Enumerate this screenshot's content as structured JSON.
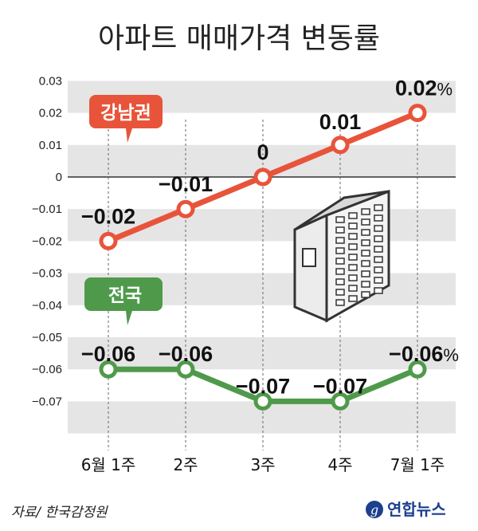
{
  "title": "아파트 매매가격 변동률",
  "source": "자료/ 한국감정원",
  "brand": "연합뉴스",
  "chart_data": {
    "type": "line",
    "categories": [
      "6월 1주",
      "2주",
      "3주",
      "4주",
      "7월 1주"
    ],
    "ylim": [
      -0.075,
      0.03
    ],
    "yticks": [
      "0.03",
      "0.02",
      "0.01",
      "0",
      "-0.01",
      "-0.02",
      "-0.03",
      "-0.04",
      "-0.05",
      "-0.06",
      "-0.07"
    ],
    "ytick_values": [
      0.03,
      0.02,
      0.01,
      0,
      -0.01,
      -0.02,
      -0.03,
      -0.04,
      -0.05,
      -0.06,
      -0.07
    ],
    "grid": "horizontal bands",
    "series": [
      {
        "name": "강남권",
        "color": "#e8543a",
        "values": [
          -0.02,
          -0.01,
          0,
          0.01,
          0.02
        ],
        "labels": [
          "-0.02",
          "-0.01",
          "0",
          "0.01",
          "0.02%"
        ]
      },
      {
        "name": "전국",
        "color": "#4f9a4a",
        "values": [
          -0.06,
          -0.06,
          -0.07,
          -0.07,
          -0.06
        ],
        "labels": [
          "-0.06",
          "-0.06",
          "-0.07",
          "-0.07",
          "-0.06%"
        ]
      }
    ]
  }
}
